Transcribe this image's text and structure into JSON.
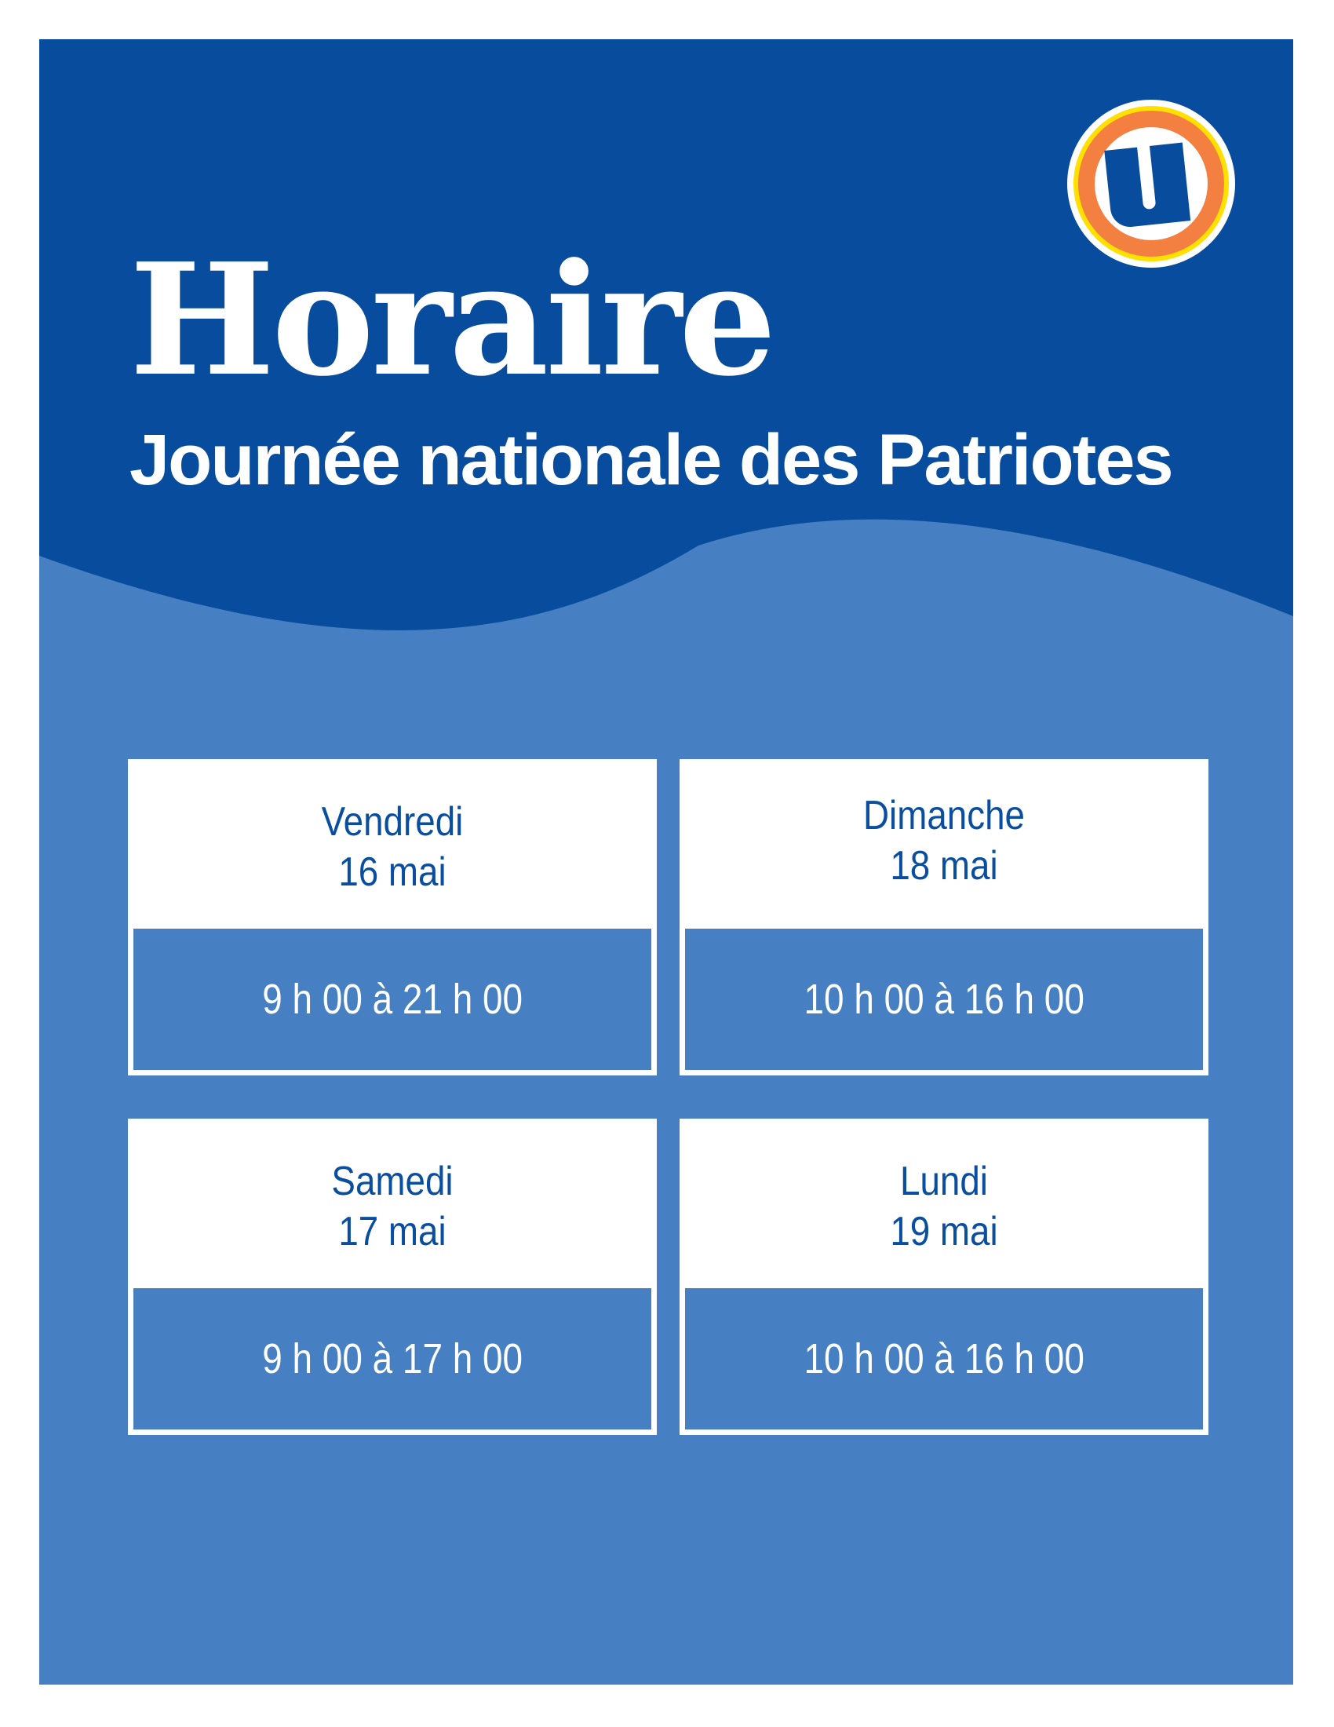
{
  "header": {
    "title": "Horaire",
    "subtitle": "Journée nationale des Patriotes",
    "logo": {
      "letter": "U",
      "icon": "u-logo"
    }
  },
  "colors": {
    "dark_blue": "#084c9e",
    "light_blue": "#4680c2",
    "orange": "#f37f40",
    "yellow": "#ffe000",
    "text_blue": "#0a4ea0"
  },
  "schedule": [
    {
      "day": "Vendredi",
      "date": "16 mai",
      "hours": "9 h 00 à 21 h 00"
    },
    {
      "day": "Dimanche",
      "date": "18 mai",
      "hours": "10 h 00 à 16 h 00"
    },
    {
      "day": "Samedi",
      "date": "17 mai",
      "hours": "9 h 00 à 17 h 00"
    },
    {
      "day": "Lundi",
      "date": "19 mai",
      "hours": "10 h 00 à 16 h 00"
    }
  ]
}
